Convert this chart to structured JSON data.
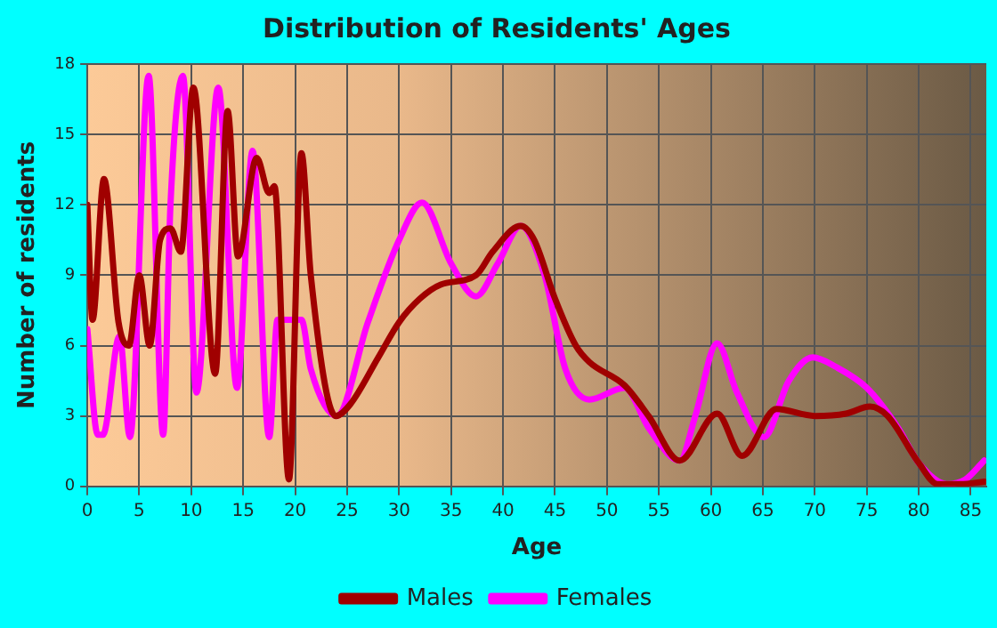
{
  "chart_data": {
    "type": "line",
    "title": "Distribution of Residents' Ages",
    "xlabel": "Age",
    "ylabel": "Number of residents",
    "xlim": [
      0,
      86.5
    ],
    "xticks": [
      0,
      5,
      10,
      15,
      20,
      25,
      30,
      35,
      40,
      45,
      50,
      55,
      60,
      65,
      70,
      75,
      80,
      85
    ],
    "ylim": [
      0,
      18
    ],
    "yticks": [
      0,
      3,
      6,
      9,
      12,
      15,
      18
    ],
    "grid": true,
    "legend": "bottom",
    "marker": "none",
    "series": [
      {
        "name": "Males",
        "color": "#a00000",
        "x": [
          0,
          0.5,
          1.6,
          3,
          4,
          5,
          6,
          7,
          8,
          9,
          10.2,
          12.3,
          13.5,
          14.5,
          16.3,
          17.5,
          18,
          19.4,
          20.6,
          21.5,
          23.9,
          25.3,
          28,
          30,
          32,
          34,
          37.4,
          39,
          41.7,
          43,
          45,
          47,
          48.3,
          51.7,
          54,
          57,
          60.6,
          63,
          66.3,
          70,
          73,
          75.3,
          77,
          80,
          81.8,
          84,
          86.3
        ],
        "values": [
          12,
          7.1,
          13.1,
          7,
          6,
          9,
          6,
          10.5,
          11,
          10,
          17,
          4.8,
          16,
          9.8,
          14,
          12.5,
          12.8,
          0.3,
          14.2,
          9,
          3,
          3.5,
          5.5,
          7,
          8,
          8.6,
          9,
          10,
          11.1,
          10.5,
          8,
          6,
          5.3,
          4.3,
          3,
          1.1,
          3.1,
          1.3,
          3.3,
          3,
          3.1,
          3.4,
          3,
          1,
          0.1,
          0.1,
          0.2
        ]
      },
      {
        "name": "Females",
        "color": "#ff00ff",
        "x": [
          0,
          1,
          1.5,
          3.1,
          4.1,
          5.9,
          7.3,
          8,
          9.2,
          10.5,
          12.6,
          14.4,
          15.9,
          17.5,
          18.3,
          19.5,
          20.6,
          21.5,
          24,
          27,
          30,
          32.2,
          35,
          37.4,
          39.5,
          41.7,
          44,
          46,
          48.3,
          51.7,
          54,
          57,
          58.5,
          60.6,
          62.5,
          65.1,
          67.5,
          69.8,
          72,
          75,
          78,
          80,
          82.7,
          84.5,
          86.3
        ],
        "values": [
          6.7,
          2.2,
          2.2,
          6.4,
          2.1,
          17.5,
          2.2,
          12,
          17.5,
          4,
          17,
          4.2,
          14.3,
          2.1,
          7.1,
          null,
          7.1,
          5,
          3,
          7,
          10.5,
          12.1,
          9.5,
          8.1,
          9.5,
          11.1,
          9,
          5,
          3.7,
          4.2,
          2.5,
          1.1,
          3,
          6.1,
          4,
          2.1,
          4.5,
          5.5,
          5.1,
          4.2,
          2.5,
          1,
          0.1,
          0.3,
          1.1
        ]
      }
    ]
  }
}
